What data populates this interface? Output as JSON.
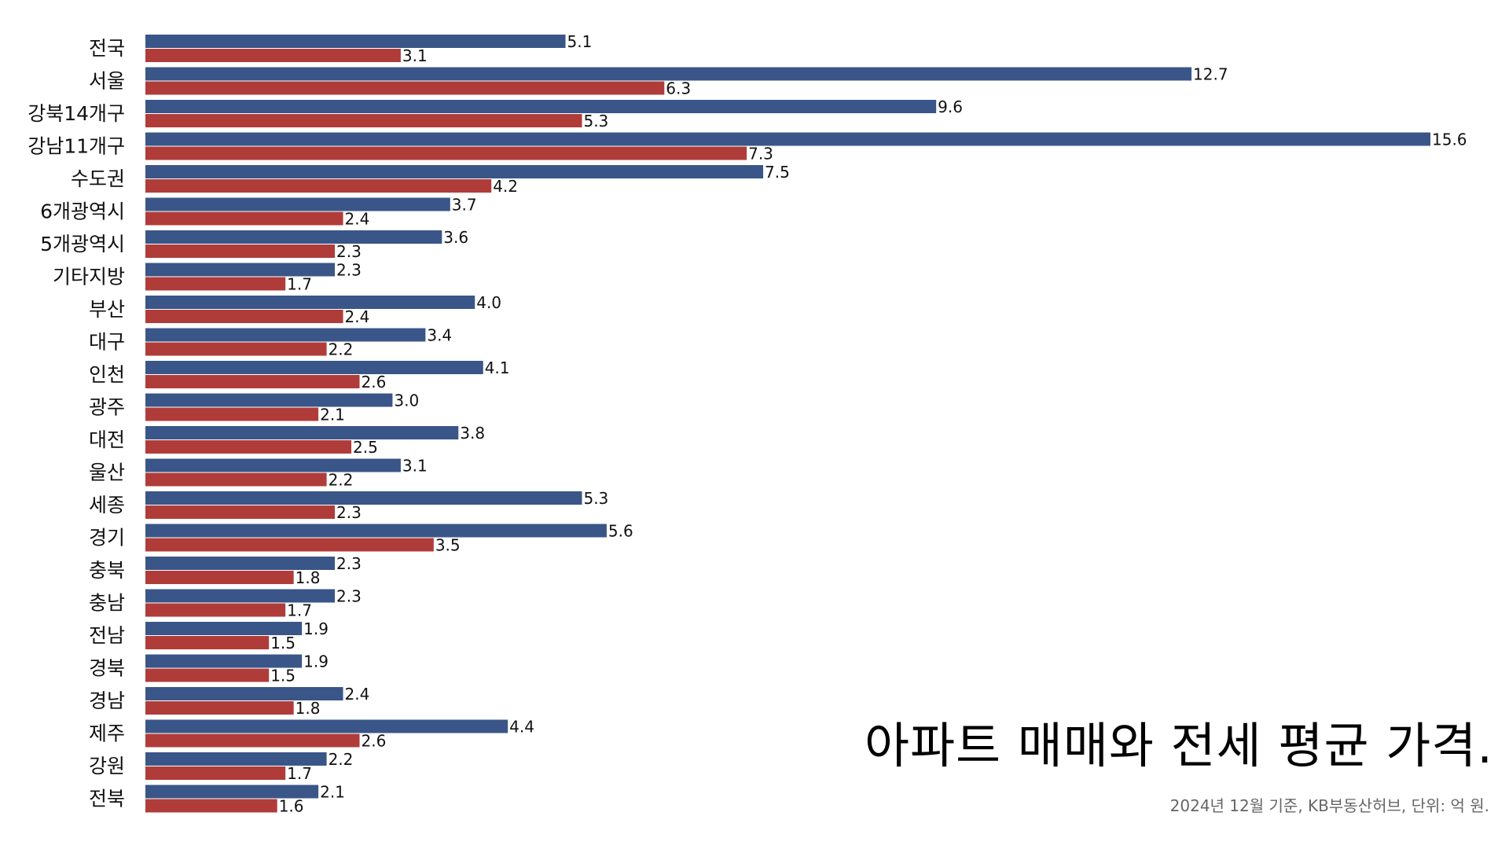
{
  "chart_data": {
    "type": "bar",
    "orientation": "horizontal",
    "title": "아파트 매매와 전세 평균 가격.",
    "subtitle": "2024년 12월 기준, KB부동산허브, 단위: 억 원.",
    "categories": [
      "전국",
      "서울",
      "강북14개구",
      "강남11개구",
      "수도권",
      "6개광역시",
      "5개광역시",
      "기타지방",
      "부산",
      "대구",
      "인천",
      "광주",
      "대전",
      "울산",
      "세종",
      "경기",
      "충북",
      "충남",
      "전남",
      "경북",
      "경남",
      "제주",
      "강원",
      "전북"
    ],
    "series": [
      {
        "color": "#3a5688",
        "values": [
          5.1,
          12.7,
          9.6,
          15.6,
          7.5,
          3.7,
          3.6,
          2.3,
          4.0,
          3.4,
          4.1,
          3.0,
          3.8,
          3.1,
          5.3,
          5.6,
          2.3,
          2.3,
          1.9,
          1.9,
          2.4,
          4.4,
          2.2,
          2.1
        ],
        "labels": [
          "5.1",
          "12.7",
          "9.6",
          "15.6",
          "7.5",
          "3.7",
          "3.6",
          "2.3",
          "4.0",
          "3.4",
          "4.1",
          "3.0",
          "3.8",
          "3.1",
          "5.3",
          "5.6",
          "2.3",
          "2.3",
          "1.9",
          "1.9",
          "2.4",
          "4.4",
          "2.2",
          "2.1"
        ]
      },
      {
        "color": "#b03c3a",
        "values": [
          3.1,
          6.3,
          5.3,
          7.3,
          4.2,
          2.4,
          2.3,
          1.7,
          2.4,
          2.2,
          2.6,
          2.1,
          2.5,
          2.2,
          2.3,
          3.5,
          1.8,
          1.7,
          1.5,
          1.5,
          1.8,
          2.6,
          1.7,
          1.6
        ],
        "labels": [
          "3.1",
          "6.3",
          "5.3",
          "7.3",
          "4.2",
          "2.4",
          "2.3",
          "1.7",
          "2.4",
          "2.2",
          "2.6",
          "2.1",
          "2.5",
          "2.2",
          "2.3",
          "3.5",
          "1.8",
          "1.7",
          "1.5",
          "1.5",
          "1.8",
          "2.6",
          "1.7",
          "1.6"
        ]
      }
    ],
    "xlim": [
      0,
      15.6
    ],
    "grid": false,
    "legend": "none"
  }
}
